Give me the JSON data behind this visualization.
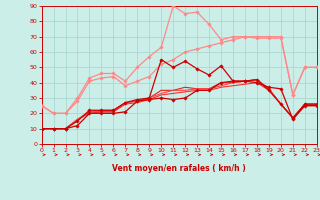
{
  "xlabel": "Vent moyen/en rafales ( km/h )",
  "xlim": [
    0,
    23
  ],
  "ylim": [
    0,
    90
  ],
  "yticks": [
    0,
    10,
    20,
    30,
    40,
    50,
    60,
    70,
    80,
    90
  ],
  "xticks": [
    0,
    1,
    2,
    3,
    4,
    5,
    6,
    7,
    8,
    9,
    10,
    11,
    12,
    13,
    14,
    15,
    16,
    17,
    18,
    19,
    20,
    21,
    22,
    23
  ],
  "bg_color": "#cceee8",
  "grid_color": "#aad8d2",
  "series": [
    {
      "x": [
        0,
        1,
        2,
        3,
        4,
        5,
        6,
        7,
        8,
        9,
        10,
        11,
        12,
        13,
        14,
        15,
        16,
        17,
        18,
        19,
        20,
        21,
        22,
        23
      ],
      "y": [
        10,
        10,
        10,
        12,
        20,
        20,
        20,
        21,
        28,
        29,
        30,
        29,
        30,
        35,
        35,
        40,
        41,
        41,
        40,
        37,
        36,
        16,
        25,
        25
      ],
      "color": "#cc0000",
      "lw": 0.9,
      "marker": "D",
      "ms": 1.8,
      "zorder": 5
    },
    {
      "x": [
        0,
        1,
        2,
        3,
        4,
        5,
        6,
        7,
        8,
        9,
        10,
        11,
        12,
        13,
        14,
        15,
        16,
        17,
        18,
        19,
        20,
        21,
        22,
        23
      ],
      "y": [
        10,
        10,
        10,
        15,
        22,
        22,
        22,
        27,
        29,
        30,
        55,
        50,
        54,
        49,
        45,
        51,
        41,
        41,
        42,
        35,
        26,
        17,
        26,
        26
      ],
      "color": "#cc0000",
      "lw": 0.9,
      "marker": "D",
      "ms": 1.8,
      "zorder": 5
    },
    {
      "x": [
        0,
        1,
        2,
        3,
        4,
        5,
        6,
        7,
        8,
        9,
        10,
        11,
        12,
        13,
        14,
        15,
        16,
        17,
        18,
        19,
        20,
        21,
        22,
        23
      ],
      "y": [
        10,
        10,
        10,
        16,
        21,
        21,
        21,
        27,
        28,
        30,
        35,
        35,
        37,
        36,
        36,
        40,
        40,
        41,
        42,
        36,
        26,
        17,
        26,
        26
      ],
      "color": "#dd2222",
      "lw": 0.8,
      "marker": null,
      "ms": 0,
      "zorder": 3
    },
    {
      "x": [
        0,
        1,
        2,
        3,
        4,
        5,
        6,
        7,
        8,
        9,
        10,
        11,
        12,
        13,
        14,
        15,
        16,
        17,
        18,
        19,
        20,
        21,
        22,
        23
      ],
      "y": [
        10,
        10,
        10,
        16,
        20,
        21,
        21,
        26,
        27,
        29,
        32,
        33,
        34,
        35,
        35,
        37,
        38,
        39,
        40,
        35,
        26,
        17,
        25,
        25
      ],
      "color": "#ee3333",
      "lw": 0.8,
      "marker": null,
      "ms": 0,
      "zorder": 3
    },
    {
      "x": [
        0,
        1,
        2,
        3,
        4,
        5,
        6,
        7,
        8,
        9,
        10,
        11,
        12,
        13,
        14,
        15,
        16,
        17,
        18,
        19,
        20,
        21,
        22,
        23
      ],
      "y": [
        10,
        10,
        10,
        16,
        21,
        22,
        22,
        27,
        28,
        30,
        33,
        35,
        35,
        36,
        36,
        38,
        40,
        41,
        42,
        36,
        26,
        17,
        26,
        26
      ],
      "color": "#ff4444",
      "lw": 0.8,
      "marker": null,
      "ms": 0,
      "zorder": 3
    },
    {
      "x": [
        0,
        1,
        2,
        3,
        4,
        5,
        6,
        7,
        8,
        9,
        10,
        11,
        12,
        13,
        14,
        15,
        16,
        17,
        18,
        19,
        20,
        21,
        22,
        23
      ],
      "y": [
        25,
        20,
        20,
        28,
        41,
        43,
        44,
        38,
        41,
        44,
        52,
        55,
        60,
        62,
        64,
        66,
        68,
        70,
        70,
        70,
        70,
        32,
        50,
        50
      ],
      "color": "#ff8888",
      "lw": 0.9,
      "marker": "D",
      "ms": 1.8,
      "zorder": 4
    },
    {
      "x": [
        0,
        1,
        2,
        3,
        4,
        5,
        6,
        7,
        8,
        9,
        10,
        11,
        12,
        13,
        14,
        15,
        16,
        17,
        18,
        19,
        20,
        21,
        22,
        23
      ],
      "y": [
        25,
        20,
        20,
        30,
        43,
        46,
        46,
        41,
        50,
        57,
        63,
        90,
        85,
        86,
        78,
        68,
        70,
        70,
        69,
        69,
        69,
        32,
        50,
        50
      ],
      "color": "#ff8888",
      "lw": 0.9,
      "marker": "D",
      "ms": 1.8,
      "zorder": 4
    }
  ],
  "axis_color": "#cc0000",
  "tick_color": "#cc0000",
  "arrow_color": "#cc0000"
}
